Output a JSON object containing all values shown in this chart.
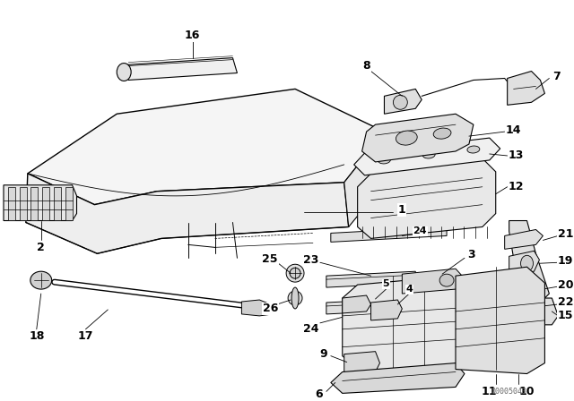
{
  "bg_color": "#ffffff",
  "line_color": "#000000",
  "watermark": "00005043",
  "fig_w": 6.4,
  "fig_h": 4.48,
  "dpi": 100
}
